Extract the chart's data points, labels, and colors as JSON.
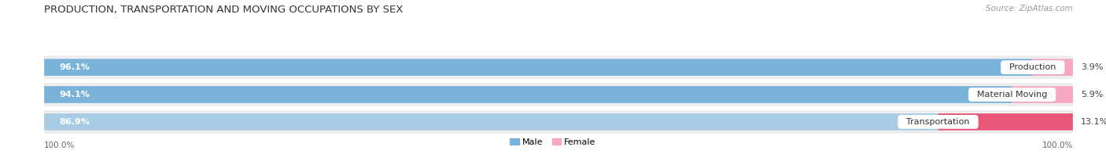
{
  "title": "PRODUCTION, TRANSPORTATION AND MOVING OCCUPATIONS BY SEX",
  "source": "Source: ZipAtlas.com",
  "categories": [
    "Production",
    "Material Moving",
    "Transportation"
  ],
  "male_pct": [
    96.1,
    94.1,
    86.9
  ],
  "female_pct": [
    3.9,
    5.9,
    13.1
  ],
  "male_colors": [
    "#7ab3d9",
    "#7ab3d9",
    "#a8cce4"
  ],
  "female_colors": [
    "#f5a8c0",
    "#f5a8c0",
    "#e8567a"
  ],
  "bg_color": "#ffffff",
  "row_bg_color": "#f0f0f0",
  "label_100_left": "100.0%",
  "label_100_right": "100.0%",
  "legend_male": "Male",
  "legend_female": "Female",
  "title_fontsize": 9.5,
  "source_fontsize": 7.5,
  "bar_label_fontsize": 8,
  "cat_label_fontsize": 8
}
